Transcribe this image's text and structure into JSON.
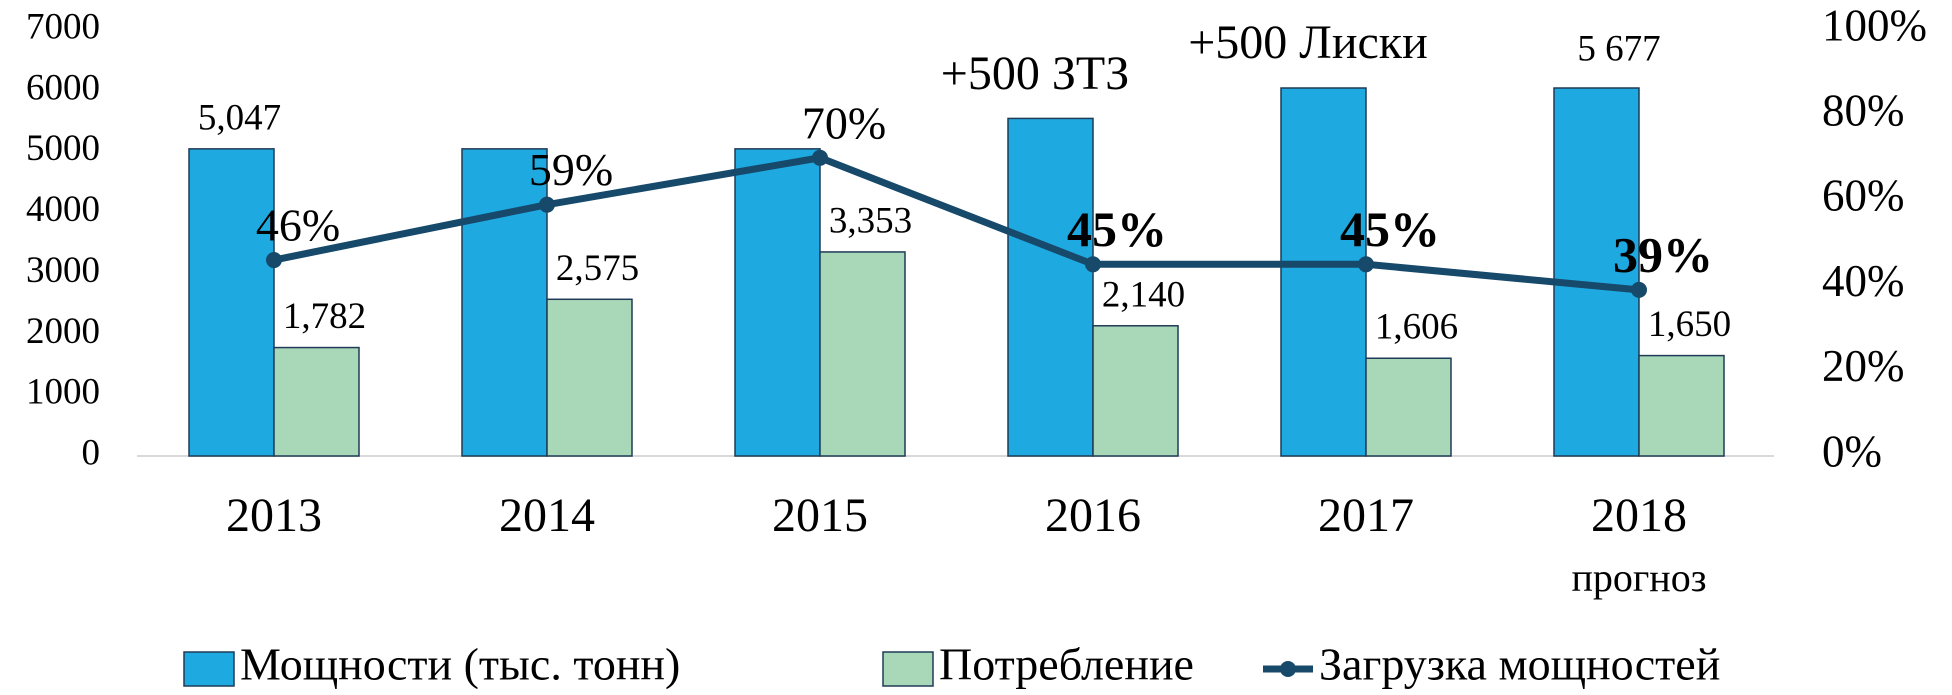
{
  "chart_data": {
    "type": "bar",
    "categories": [
      "2013",
      "2014",
      "2015",
      "2016",
      "2017",
      "2018\nпрогноз"
    ],
    "series": [
      {
        "name": "Мощности (тыс. тонн)",
        "type": "bar",
        "color": "#1ea9e1",
        "values": [
          5047,
          5047,
          5047,
          5547,
          6047,
          6047
        ],
        "value_labels": [
          "5,047",
          null,
          null,
          null,
          null,
          null
        ]
      },
      {
        "name": "Потребление",
        "type": "bar",
        "color": "#a9d8b8",
        "values": [
          1782,
          2575,
          3353,
          2140,
          1606,
          1650
        ],
        "value_labels": [
          "1,782",
          "2,575",
          "3,353",
          "2,140",
          "1,606",
          "1,650"
        ]
      },
      {
        "name": "Загрузка мощностей",
        "type": "line",
        "axis": "y2",
        "color": "#17496a",
        "values": [
          46,
          59,
          70,
          45,
          45,
          39
        ],
        "value_labels": [
          "46%",
          "59%",
          "70%",
          "45%",
          "45%",
          "39%"
        ],
        "label_bold": [
          false,
          false,
          false,
          true,
          true,
          true
        ]
      }
    ],
    "annotations": [
      {
        "text": "+500 ЗТЗ",
        "category": 3,
        "color": "#c00000"
      },
      {
        "text": "+500 Лиски",
        "category": 4,
        "color": "#c00000"
      },
      {
        "text": "5 677",
        "category": 5,
        "color": "#000000"
      }
    ],
    "ylim": [
      0,
      7000
    ],
    "yticks": [
      0,
      1000,
      2000,
      3000,
      4000,
      5000,
      6000,
      7000
    ],
    "y2lim": [
      0,
      100
    ],
    "y2ticks": [
      {
        "value": 0,
        "label": "0%"
      },
      {
        "value": 20,
        "label": "20%"
      },
      {
        "value": 40,
        "label": "40%"
      },
      {
        "value": 60,
        "label": "60%"
      },
      {
        "value": 80,
        "label": "80%"
      },
      {
        "value": 100,
        "label": "100%"
      }
    ],
    "grid": false,
    "legend": "bottom"
  }
}
